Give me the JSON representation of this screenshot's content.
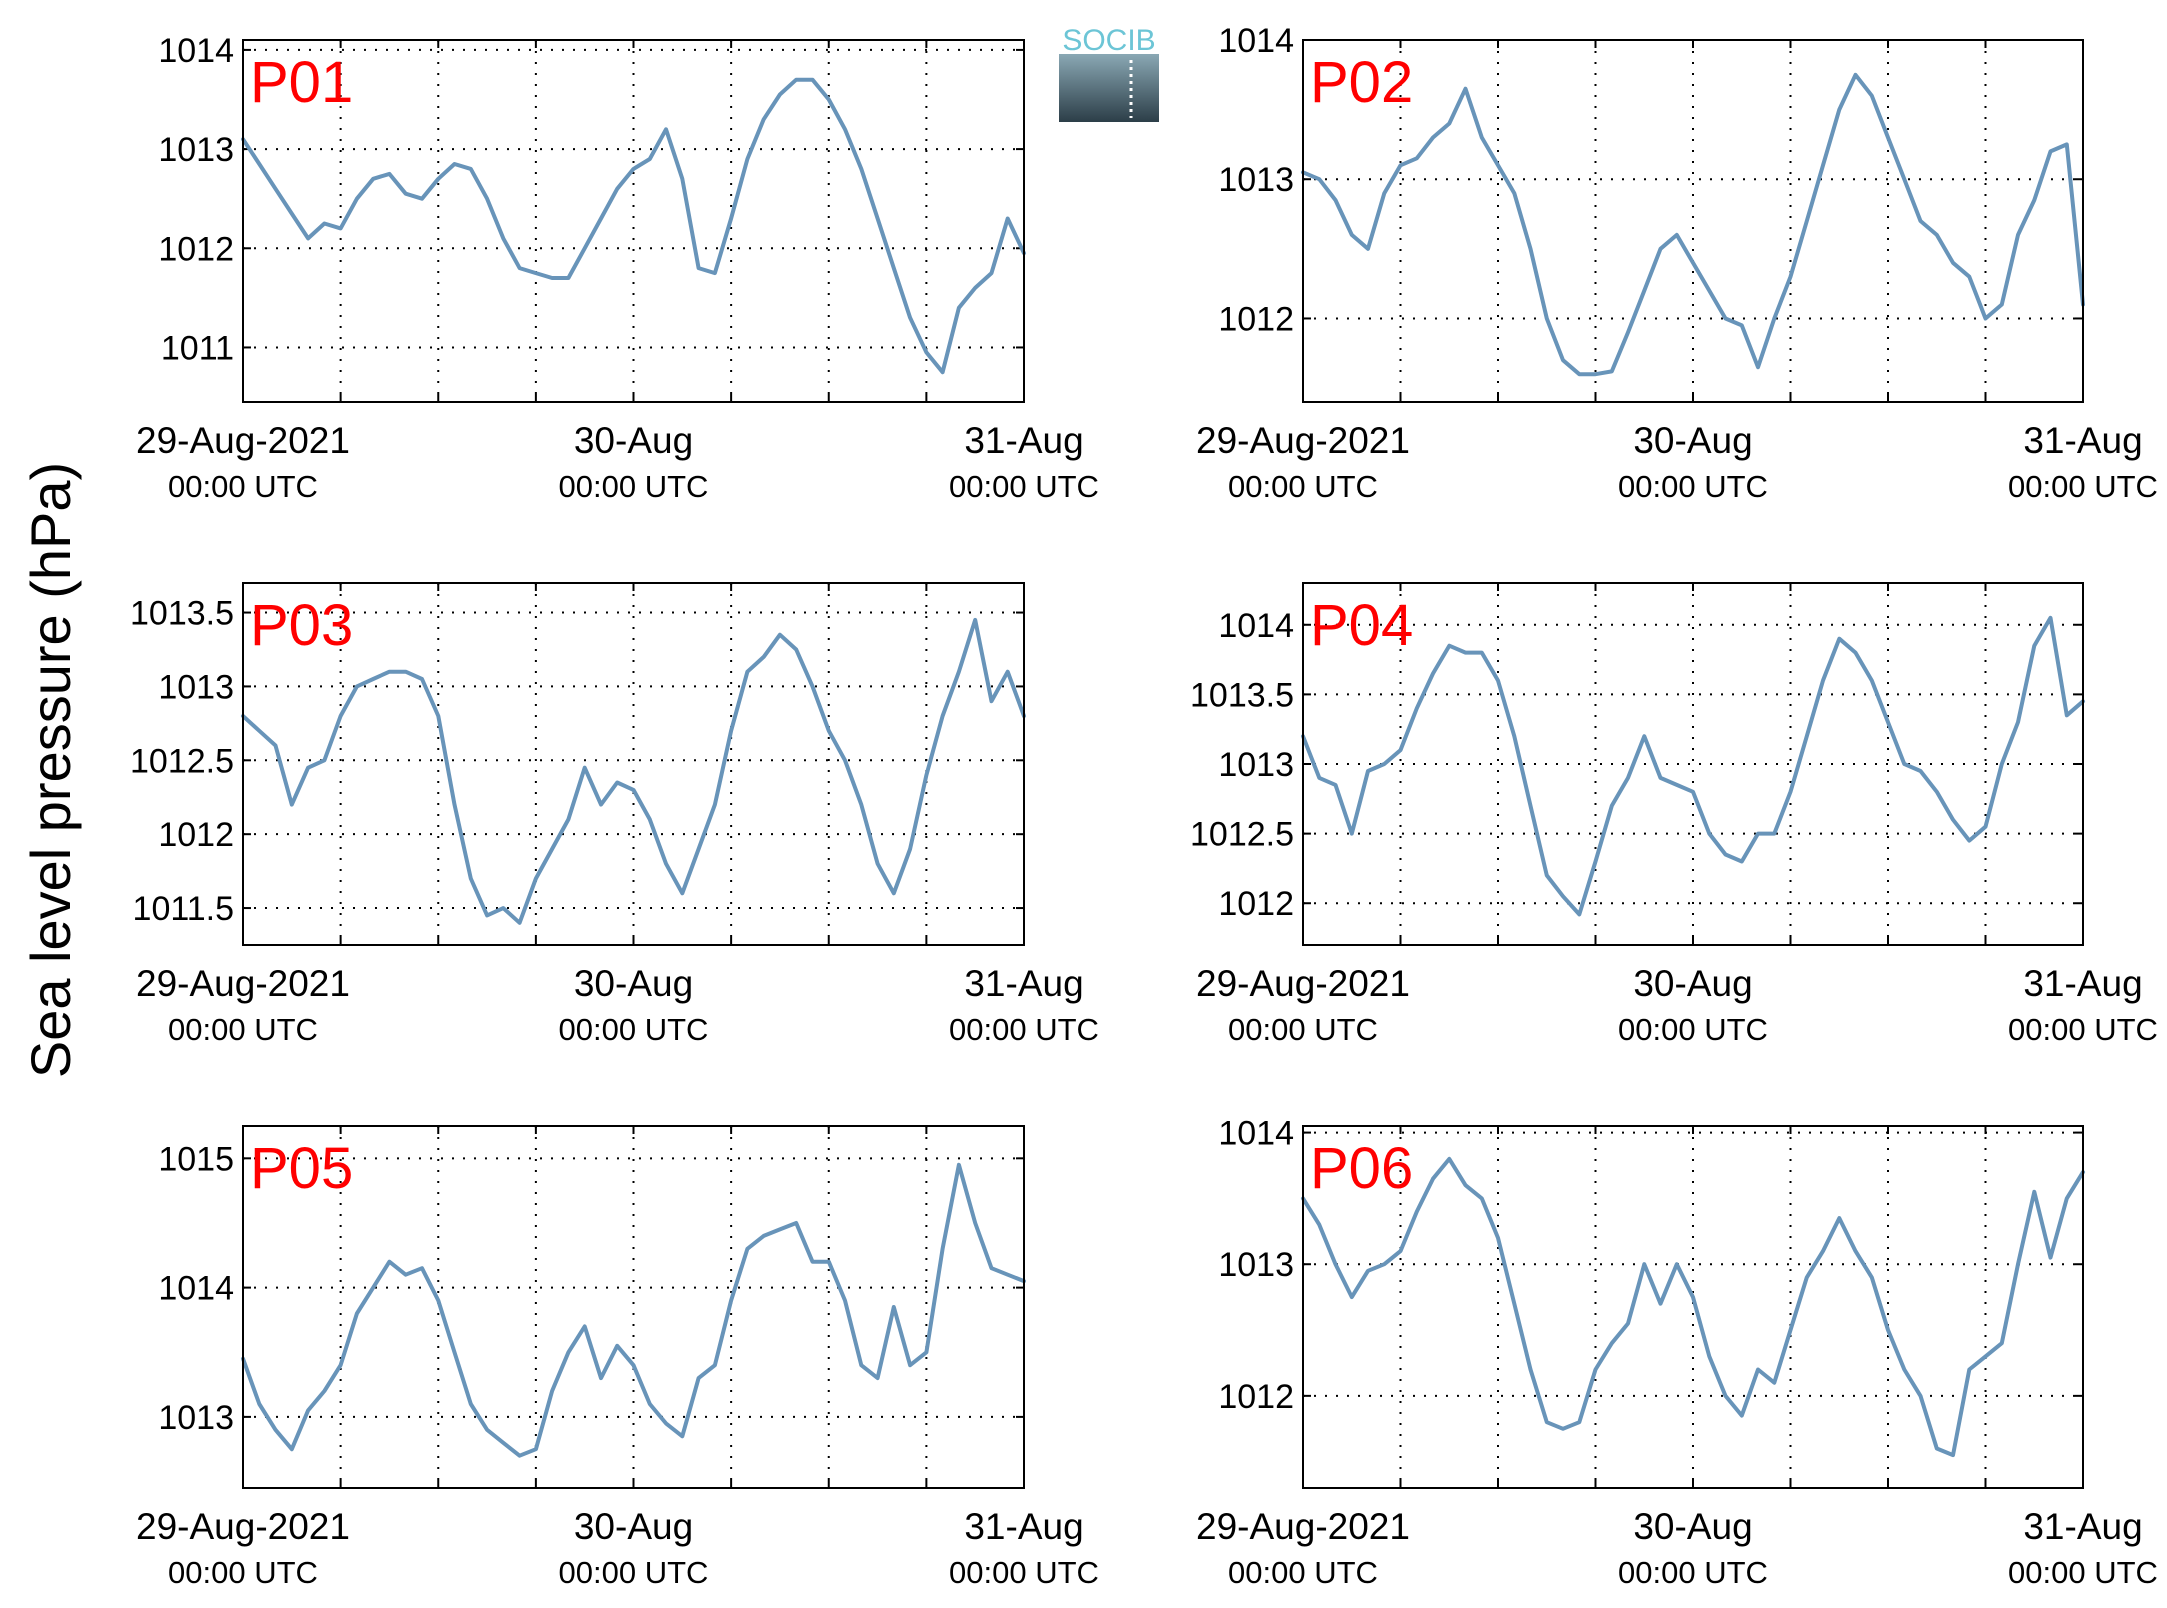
{
  "logo": {
    "text": "SOCIB",
    "colors": {
      "text": "#6cc5d6",
      "top": "#8aa8b4",
      "bottom": "#2c3e48"
    }
  },
  "ylabel": "Sea level pressure (hPa)",
  "style": {
    "line_color": "#6894b9",
    "label_color": "#ff0000"
  },
  "chart_data": [
    {
      "type": "line",
      "label": "P01",
      "x_ticks": [
        {
          "date": "29-Aug-2021",
          "time": "00:00 UTC"
        },
        {
          "date": "30-Aug",
          "time": "00:00 UTC"
        },
        {
          "date": "31-Aug",
          "time": "00:00 UTC"
        }
      ],
      "xlim": [
        "2021-08-29 00:00",
        "2021-08-31 00:00"
      ],
      "ylim": [
        1010.45,
        1014.1
      ],
      "yticks": [
        1011,
        1012,
        1013,
        1014
      ],
      "grid": true,
      "series": [
        {
          "x_hours": [
            0,
            1,
            2,
            3,
            4,
            5,
            6,
            7,
            8,
            9,
            10,
            11,
            12,
            13,
            14,
            15,
            16,
            17,
            18,
            19,
            20,
            21,
            22,
            23,
            24,
            25,
            26,
            27,
            28,
            29,
            30,
            31,
            32,
            33,
            34,
            35,
            36,
            37,
            38,
            39,
            40,
            41,
            42,
            43,
            44,
            45,
            46,
            47,
            48
          ],
          "values": [
            1013.1,
            1012.85,
            1012.6,
            1012.35,
            1012.1,
            1012.25,
            1012.2,
            1012.5,
            1012.7,
            1012.75,
            1012.55,
            1012.5,
            1012.7,
            1012.85,
            1012.8,
            1012.5,
            1012.1,
            1011.8,
            1011.75,
            1011.7,
            1011.7,
            1012.0,
            1012.3,
            1012.6,
            1012.8,
            1012.9,
            1013.2,
            1012.7,
            1011.8,
            1011.75,
            1012.3,
            1012.9,
            1013.3,
            1013.55,
            1013.7,
            1013.7,
            1013.5,
            1013.2,
            1012.8,
            1012.3,
            1011.8,
            1011.3,
            1010.95,
            1010.75,
            1011.4,
            1011.6,
            1011.75,
            1012.3,
            1011.95
          ]
        }
      ]
    },
    {
      "type": "line",
      "label": "P02",
      "x_ticks": [
        {
          "date": "29-Aug-2021",
          "time": "00:00 UTC"
        },
        {
          "date": "30-Aug",
          "time": "00:00 UTC"
        },
        {
          "date": "31-Aug",
          "time": "00:00 UTC"
        }
      ],
      "xlim": [
        "2021-08-29 00:00",
        "2021-08-31 00:00"
      ],
      "ylim": [
        1011.4,
        1014.0
      ],
      "yticks": [
        1012,
        1013,
        1014
      ],
      "grid": true,
      "series": [
        {
          "x_hours": [
            0,
            1,
            2,
            3,
            4,
            5,
            6,
            7,
            8,
            9,
            10,
            11,
            12,
            13,
            14,
            15,
            16,
            17,
            18,
            19,
            20,
            21,
            22,
            23,
            24,
            25,
            26,
            27,
            28,
            29,
            30,
            31,
            32,
            33,
            34,
            35,
            36,
            37,
            38,
            39,
            40,
            41,
            42,
            43,
            44,
            45,
            46,
            47,
            48
          ],
          "values": [
            1013.05,
            1013.0,
            1012.85,
            1012.6,
            1012.5,
            1012.9,
            1013.1,
            1013.15,
            1013.3,
            1013.4,
            1013.65,
            1013.3,
            1013.1,
            1012.9,
            1012.5,
            1012.0,
            1011.7,
            1011.6,
            1011.6,
            1011.62,
            1011.9,
            1012.2,
            1012.5,
            1012.6,
            1012.4,
            1012.2,
            1012.0,
            1011.95,
            1011.65,
            1012.0,
            1012.3,
            1012.7,
            1013.1,
            1013.5,
            1013.75,
            1013.6,
            1013.3,
            1013.0,
            1012.7,
            1012.6,
            1012.4,
            1012.3,
            1012.0,
            1012.1,
            1012.6,
            1012.85,
            1013.2,
            1013.25,
            1012.1
          ]
        }
      ]
    },
    {
      "type": "line",
      "label": "P03",
      "x_ticks": [
        {
          "date": "29-Aug-2021",
          "time": "00:00 UTC"
        },
        {
          "date": "30-Aug",
          "time": "00:00 UTC"
        },
        {
          "date": "31-Aug",
          "time": "00:00 UTC"
        }
      ],
      "xlim": [
        "2021-08-29 00:00",
        "2021-08-31 00:00"
      ],
      "ylim": [
        1011.25,
        1013.7
      ],
      "yticks": [
        1011.5,
        1012,
        1012.5,
        1013,
        1013.5
      ],
      "grid": true,
      "series": [
        {
          "x_hours": [
            0,
            1,
            2,
            3,
            4,
            5,
            6,
            7,
            8,
            9,
            10,
            11,
            12,
            13,
            14,
            15,
            16,
            17,
            18,
            19,
            20,
            21,
            22,
            23,
            24,
            25,
            26,
            27,
            28,
            29,
            30,
            31,
            32,
            33,
            34,
            35,
            36,
            37,
            38,
            39,
            40,
            41,
            42,
            43,
            44,
            45,
            46,
            47,
            48
          ],
          "values": [
            1012.8,
            1012.7,
            1012.6,
            1012.2,
            1012.45,
            1012.5,
            1012.8,
            1013.0,
            1013.05,
            1013.1,
            1013.1,
            1013.05,
            1012.8,
            1012.2,
            1011.7,
            1011.45,
            1011.5,
            1011.4,
            1011.7,
            1011.9,
            1012.1,
            1012.45,
            1012.2,
            1012.35,
            1012.3,
            1012.1,
            1011.8,
            1011.6,
            1011.9,
            1012.2,
            1012.7,
            1013.1,
            1013.2,
            1013.35,
            1013.25,
            1013.0,
            1012.7,
            1012.5,
            1012.2,
            1011.8,
            1011.6,
            1011.9,
            1012.4,
            1012.8,
            1013.1,
            1013.45,
            1012.9,
            1013.1,
            1012.8
          ]
        }
      ]
    },
    {
      "type": "line",
      "label": "P04",
      "x_ticks": [
        {
          "date": "29-Aug-2021",
          "time": "00:00 UTC"
        },
        {
          "date": "30-Aug",
          "time": "00:00 UTC"
        },
        {
          "date": "31-Aug",
          "time": "00:00 UTC"
        }
      ],
      "xlim": [
        "2021-08-29 00:00",
        "2021-08-31 00:00"
      ],
      "ylim": [
        1011.7,
        1014.3
      ],
      "yticks": [
        1012,
        1012.5,
        1013,
        1013.5,
        1014
      ],
      "grid": true,
      "series": [
        {
          "x_hours": [
            0,
            1,
            2,
            3,
            4,
            5,
            6,
            7,
            8,
            9,
            10,
            11,
            12,
            13,
            14,
            15,
            16,
            17,
            18,
            19,
            20,
            21,
            22,
            23,
            24,
            25,
            26,
            27,
            28,
            29,
            30,
            31,
            32,
            33,
            34,
            35,
            36,
            37,
            38,
            39,
            40,
            41,
            42,
            43,
            44,
            45,
            46,
            47,
            48
          ],
          "values": [
            1013.2,
            1012.9,
            1012.85,
            1012.5,
            1012.95,
            1013.0,
            1013.1,
            1013.4,
            1013.65,
            1013.85,
            1013.8,
            1013.8,
            1013.6,
            1013.2,
            1012.7,
            1012.2,
            1012.05,
            1011.92,
            1012.3,
            1012.7,
            1012.9,
            1013.2,
            1012.9,
            1012.85,
            1012.8,
            1012.5,
            1012.35,
            1012.3,
            1012.5,
            1012.5,
            1012.8,
            1013.2,
            1013.6,
            1013.9,
            1013.8,
            1013.6,
            1013.3,
            1013.0,
            1012.95,
            1012.8,
            1012.6,
            1012.45,
            1012.55,
            1013.0,
            1013.3,
            1013.85,
            1014.05,
            1013.35,
            1013.45
          ]
        }
      ]
    },
    {
      "type": "line",
      "label": "P05",
      "x_ticks": [
        {
          "date": "29-Aug-2021",
          "time": "00:00 UTC"
        },
        {
          "date": "30-Aug",
          "time": "00:00 UTC"
        },
        {
          "date": "31-Aug",
          "time": "00:00 UTC"
        }
      ],
      "xlim": [
        "2021-08-29 00:00",
        "2021-08-31 00:00"
      ],
      "ylim": [
        1012.45,
        1015.25
      ],
      "yticks": [
        1013,
        1014,
        1015
      ],
      "grid": true,
      "series": [
        {
          "x_hours": [
            0,
            1,
            2,
            3,
            4,
            5,
            6,
            7,
            8,
            9,
            10,
            11,
            12,
            13,
            14,
            15,
            16,
            17,
            18,
            19,
            20,
            21,
            22,
            23,
            24,
            25,
            26,
            27,
            28,
            29,
            30,
            31,
            32,
            33,
            34,
            35,
            36,
            37,
            38,
            39,
            40,
            41,
            42,
            43,
            44,
            45,
            46,
            47,
            48
          ],
          "values": [
            1013.45,
            1013.1,
            1012.9,
            1012.75,
            1013.05,
            1013.2,
            1013.4,
            1013.8,
            1014.0,
            1014.2,
            1014.1,
            1014.15,
            1013.9,
            1013.5,
            1013.1,
            1012.9,
            1012.8,
            1012.7,
            1012.75,
            1013.2,
            1013.5,
            1013.7,
            1013.3,
            1013.55,
            1013.4,
            1013.1,
            1012.95,
            1012.85,
            1013.3,
            1013.4,
            1013.9,
            1014.3,
            1014.4,
            1014.45,
            1014.5,
            1014.2,
            1014.2,
            1013.9,
            1013.4,
            1013.3,
            1013.85,
            1013.4,
            1013.5,
            1014.3,
            1014.95,
            1014.5,
            1014.15,
            1014.1,
            1014.05
          ]
        }
      ]
    },
    {
      "type": "line",
      "label": "P06",
      "x_ticks": [
        {
          "date": "29-Aug-2021",
          "time": "00:00 UTC"
        },
        {
          "date": "30-Aug",
          "time": "00:00 UTC"
        },
        {
          "date": "31-Aug",
          "time": "00:00 UTC"
        }
      ],
      "xlim": [
        "2021-08-29 00:00",
        "2021-08-31 00:00"
      ],
      "ylim": [
        1011.3,
        1014.05
      ],
      "yticks": [
        1012,
        1013,
        1014
      ],
      "grid": true,
      "series": [
        {
          "x_hours": [
            0,
            1,
            2,
            3,
            4,
            5,
            6,
            7,
            8,
            9,
            10,
            11,
            12,
            13,
            14,
            15,
            16,
            17,
            18,
            19,
            20,
            21,
            22,
            23,
            24,
            25,
            26,
            27,
            28,
            29,
            30,
            31,
            32,
            33,
            34,
            35,
            36,
            37,
            38,
            39,
            40,
            41,
            42,
            43,
            44,
            45,
            46,
            47,
            48
          ],
          "values": [
            1013.5,
            1013.3,
            1013.0,
            1012.75,
            1012.95,
            1013.0,
            1013.1,
            1013.4,
            1013.65,
            1013.8,
            1013.6,
            1013.5,
            1013.2,
            1012.7,
            1012.2,
            1011.8,
            1011.75,
            1011.8,
            1012.2,
            1012.4,
            1012.55,
            1013.0,
            1012.7,
            1013.0,
            1012.75,
            1012.3,
            1012.0,
            1011.85,
            1012.2,
            1012.1,
            1012.5,
            1012.9,
            1013.1,
            1013.35,
            1013.1,
            1012.9,
            1012.5,
            1012.2,
            1012.0,
            1011.6,
            1011.55,
            1012.2,
            1012.3,
            1012.4,
            1013.0,
            1013.55,
            1013.05,
            1013.5,
            1013.7
          ]
        }
      ]
    }
  ]
}
